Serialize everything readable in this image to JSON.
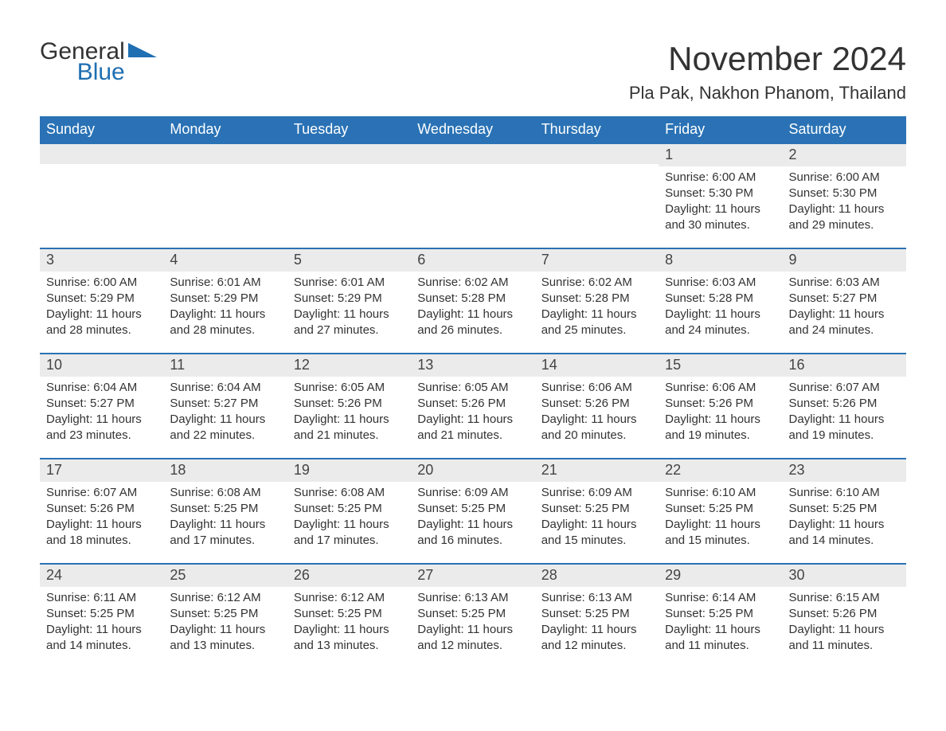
{
  "brand": {
    "word1": "General",
    "word2": "Blue"
  },
  "title": "November 2024",
  "location": "Pla Pak, Nakhon Phanom, Thailand",
  "colors": {
    "header_bg": "#2a72b5",
    "header_text": "#ffffff",
    "row_border": "#2a72b5",
    "daynum_bg": "#ebebeb",
    "body_text": "#333333",
    "brand_blue": "#1f6fb2",
    "page_bg": "#ffffff"
  },
  "weekdays": [
    "Sunday",
    "Monday",
    "Tuesday",
    "Wednesday",
    "Thursday",
    "Friday",
    "Saturday"
  ],
  "weeks": [
    [
      null,
      null,
      null,
      null,
      null,
      {
        "n": "1",
        "sunrise": "6:00 AM",
        "sunset": "5:30 PM",
        "daylight": "11 hours and 30 minutes."
      },
      {
        "n": "2",
        "sunrise": "6:00 AM",
        "sunset": "5:30 PM",
        "daylight": "11 hours and 29 minutes."
      }
    ],
    [
      {
        "n": "3",
        "sunrise": "6:00 AM",
        "sunset": "5:29 PM",
        "daylight": "11 hours and 28 minutes."
      },
      {
        "n": "4",
        "sunrise": "6:01 AM",
        "sunset": "5:29 PM",
        "daylight": "11 hours and 28 minutes."
      },
      {
        "n": "5",
        "sunrise": "6:01 AM",
        "sunset": "5:29 PM",
        "daylight": "11 hours and 27 minutes."
      },
      {
        "n": "6",
        "sunrise": "6:02 AM",
        "sunset": "5:28 PM",
        "daylight": "11 hours and 26 minutes."
      },
      {
        "n": "7",
        "sunrise": "6:02 AM",
        "sunset": "5:28 PM",
        "daylight": "11 hours and 25 minutes."
      },
      {
        "n": "8",
        "sunrise": "6:03 AM",
        "sunset": "5:28 PM",
        "daylight": "11 hours and 24 minutes."
      },
      {
        "n": "9",
        "sunrise": "6:03 AM",
        "sunset": "5:27 PM",
        "daylight": "11 hours and 24 minutes."
      }
    ],
    [
      {
        "n": "10",
        "sunrise": "6:04 AM",
        "sunset": "5:27 PM",
        "daylight": "11 hours and 23 minutes."
      },
      {
        "n": "11",
        "sunrise": "6:04 AM",
        "sunset": "5:27 PM",
        "daylight": "11 hours and 22 minutes."
      },
      {
        "n": "12",
        "sunrise": "6:05 AM",
        "sunset": "5:26 PM",
        "daylight": "11 hours and 21 minutes."
      },
      {
        "n": "13",
        "sunrise": "6:05 AM",
        "sunset": "5:26 PM",
        "daylight": "11 hours and 21 minutes."
      },
      {
        "n": "14",
        "sunrise": "6:06 AM",
        "sunset": "5:26 PM",
        "daylight": "11 hours and 20 minutes."
      },
      {
        "n": "15",
        "sunrise": "6:06 AM",
        "sunset": "5:26 PM",
        "daylight": "11 hours and 19 minutes."
      },
      {
        "n": "16",
        "sunrise": "6:07 AM",
        "sunset": "5:26 PM",
        "daylight": "11 hours and 19 minutes."
      }
    ],
    [
      {
        "n": "17",
        "sunrise": "6:07 AM",
        "sunset": "5:26 PM",
        "daylight": "11 hours and 18 minutes."
      },
      {
        "n": "18",
        "sunrise": "6:08 AM",
        "sunset": "5:25 PM",
        "daylight": "11 hours and 17 minutes."
      },
      {
        "n": "19",
        "sunrise": "6:08 AM",
        "sunset": "5:25 PM",
        "daylight": "11 hours and 17 minutes."
      },
      {
        "n": "20",
        "sunrise": "6:09 AM",
        "sunset": "5:25 PM",
        "daylight": "11 hours and 16 minutes."
      },
      {
        "n": "21",
        "sunrise": "6:09 AM",
        "sunset": "5:25 PM",
        "daylight": "11 hours and 15 minutes."
      },
      {
        "n": "22",
        "sunrise": "6:10 AM",
        "sunset": "5:25 PM",
        "daylight": "11 hours and 15 minutes."
      },
      {
        "n": "23",
        "sunrise": "6:10 AM",
        "sunset": "5:25 PM",
        "daylight": "11 hours and 14 minutes."
      }
    ],
    [
      {
        "n": "24",
        "sunrise": "6:11 AM",
        "sunset": "5:25 PM",
        "daylight": "11 hours and 14 minutes."
      },
      {
        "n": "25",
        "sunrise": "6:12 AM",
        "sunset": "5:25 PM",
        "daylight": "11 hours and 13 minutes."
      },
      {
        "n": "26",
        "sunrise": "6:12 AM",
        "sunset": "5:25 PM",
        "daylight": "11 hours and 13 minutes."
      },
      {
        "n": "27",
        "sunrise": "6:13 AM",
        "sunset": "5:25 PM",
        "daylight": "11 hours and 12 minutes."
      },
      {
        "n": "28",
        "sunrise": "6:13 AM",
        "sunset": "5:25 PM",
        "daylight": "11 hours and 12 minutes."
      },
      {
        "n": "29",
        "sunrise": "6:14 AM",
        "sunset": "5:25 PM",
        "daylight": "11 hours and 11 minutes."
      },
      {
        "n": "30",
        "sunrise": "6:15 AM",
        "sunset": "5:26 PM",
        "daylight": "11 hours and 11 minutes."
      }
    ]
  ],
  "labels": {
    "sunrise": "Sunrise: ",
    "sunset": "Sunset: ",
    "daylight": "Daylight: "
  }
}
